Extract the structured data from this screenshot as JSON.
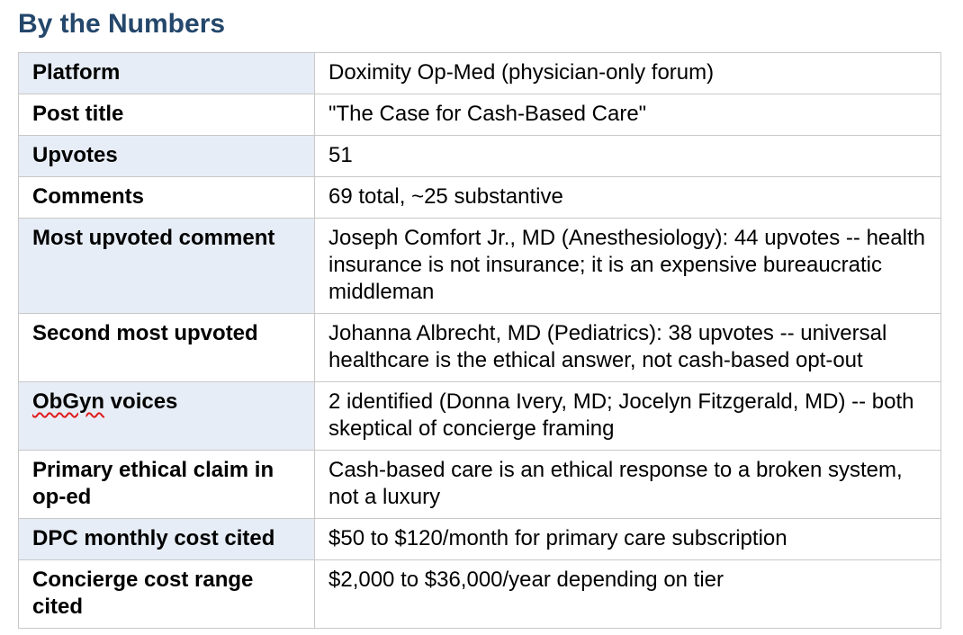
{
  "title": "By the Numbers",
  "theme": {
    "title_color": "#24476b",
    "row_shade": "#e7edf6",
    "border_color": "#c8c8c8",
    "text_color": "#000000",
    "spellcheck_color": "#e01b1b"
  },
  "table": {
    "rows": [
      {
        "label": "Platform",
        "value": "Doximity Op-Med (physician-only forum)"
      },
      {
        "label": "Post title",
        "value": "\"The Case for Cash-Based Care\""
      },
      {
        "label": "Upvotes",
        "value": "51"
      },
      {
        "label": "Comments",
        "value": "69 total, ~25 substantive"
      },
      {
        "label": "Most upvoted comment",
        "value": "Joseph Comfort Jr., MD (Anesthesiology): 44 upvotes -- health insurance is not insurance; it is an expensive bureaucratic middleman"
      },
      {
        "label": "Second most upvoted",
        "value": "Johanna Albrecht, MD (Pediatrics): 38 upvotes -- universal healthcare is the ethical answer, not cash-based opt-out"
      },
      {
        "label": "ObGyn voices",
        "misspelled_word": "ObGyn",
        "value": "2 identified (Donna Ivery, MD; Jocelyn Fitzgerald, MD) -- both skeptical of concierge framing"
      },
      {
        "label": "Primary ethical claim in op-ed",
        "value": "Cash-based care is an ethical response to a broken system, not a luxury"
      },
      {
        "label": "DPC monthly cost cited",
        "value": "$50 to $120/month for primary care subscription"
      },
      {
        "label": "Concierge cost range cited",
        "value": "$2,000 to $36,000/year depending on tier"
      }
    ]
  }
}
